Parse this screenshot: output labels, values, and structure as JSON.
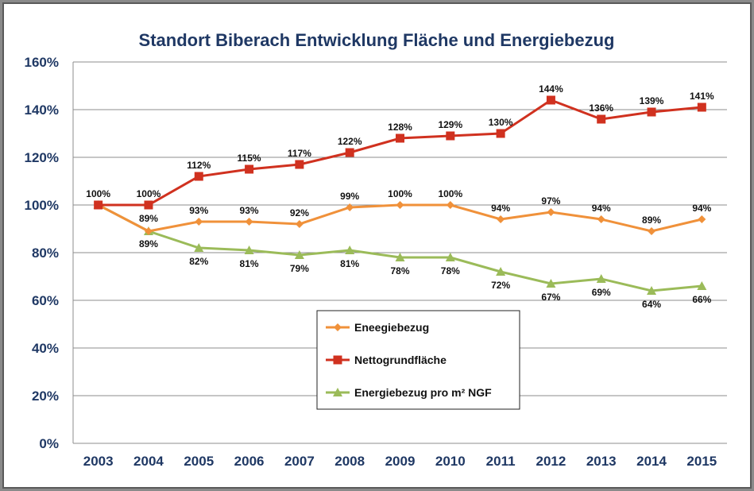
{
  "chart_data": {
    "type": "line",
    "title": "Standort Biberach Entwicklung Fläche und Energiebezug",
    "xlabel": "",
    "ylabel": "",
    "categories": [
      "2003",
      "2004",
      "2005",
      "2006",
      "2007",
      "2008",
      "2009",
      "2010",
      "2011",
      "2012",
      "2013",
      "2014",
      "2015"
    ],
    "ylim": [
      0,
      160
    ],
    "yticks": [
      0,
      20,
      40,
      60,
      80,
      100,
      120,
      140,
      160
    ],
    "ytick_labels": [
      "0%",
      "20%",
      "40%",
      "60%",
      "80%",
      "100%",
      "120%",
      "140%",
      "160%"
    ],
    "grid": "horizontal",
    "legend_position": "center-bottom",
    "series": [
      {
        "name": "Eneegiebezug",
        "color": "#f0913a",
        "marker": "diamond",
        "values": [
          100,
          89,
          93,
          93,
          92,
          99,
          100,
          100,
          94,
          97,
          94,
          89,
          94
        ],
        "labels": [
          "",
          "89%",
          "93%",
          "93%",
          "92%",
          "99%",
          "100%",
          "100%",
          "94%",
          "97%",
          "94%",
          "89%",
          "94%"
        ]
      },
      {
        "name": "Nettogrundfläche",
        "color": "#d0311f",
        "marker": "square",
        "values": [
          100,
          100,
          112,
          115,
          117,
          122,
          128,
          129,
          130,
          144,
          136,
          139,
          141
        ],
        "labels": [
          "100%",
          "100%",
          "112%",
          "115%",
          "117%",
          "122%",
          "128%",
          "129%",
          "130%",
          "144%",
          "136%",
          "139%",
          "141%"
        ]
      },
      {
        "name": "Energiebezug pro m² NGF",
        "color": "#9bbb59",
        "marker": "triangle",
        "values": [
          100,
          89,
          82,
          81,
          79,
          81,
          78,
          78,
          72,
          67,
          69,
          64,
          66
        ],
        "labels": [
          "",
          "89%",
          "82%",
          "81%",
          "79%",
          "81%",
          "78%",
          "78%",
          "72%",
          "67%",
          "69%",
          "64%",
          "66%"
        ]
      }
    ]
  }
}
